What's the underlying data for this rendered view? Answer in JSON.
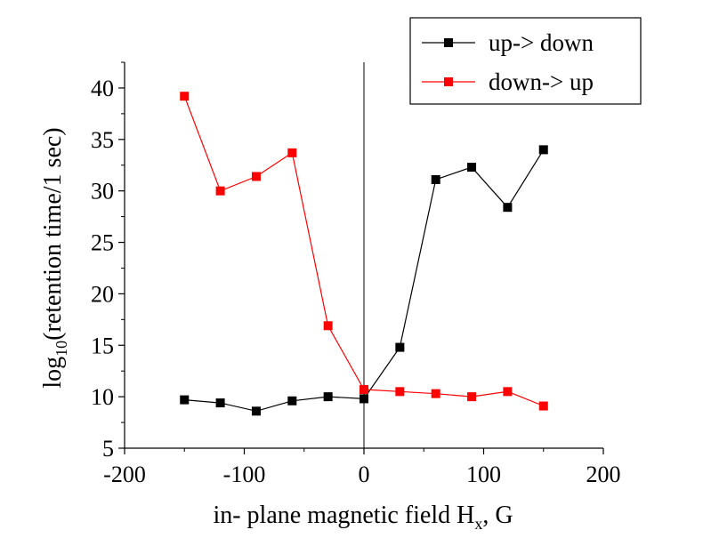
{
  "chart_data": {
    "type": "line",
    "xlabel": {
      "main": "in- plane magnetic field H",
      "sub": "x",
      "suffix": ", G"
    },
    "ylabel": {
      "prefix": "log",
      "sub": "10",
      "suffix": "(retention time/1 sec)"
    },
    "xlim": [
      -200,
      200
    ],
    "ylim": [
      5,
      42.5
    ],
    "xticks": [
      -200,
      -100,
      0,
      100,
      200
    ],
    "xtick_labels": [
      "-200",
      "-100",
      "0",
      "100",
      "200"
    ],
    "yticks": [
      5,
      10,
      15,
      20,
      25,
      30,
      35,
      40
    ],
    "ytick_labels": [
      "5",
      "10",
      "15",
      "20",
      "25",
      "30",
      "35",
      "40"
    ],
    "vertical_line_at_x": 0,
    "grid": false,
    "legend": "top-right",
    "series": [
      {
        "name": "up-> down",
        "color": "#000000",
        "marker": "square",
        "x": [
          -150,
          -120,
          -90,
          -60,
          -30,
          0,
          30,
          60,
          90,
          120,
          150
        ],
        "y": [
          9.7,
          9.4,
          8.6,
          9.6,
          10.0,
          9.8,
          14.8,
          31.1,
          32.3,
          28.4,
          34.0
        ]
      },
      {
        "name": "down-> up",
        "color": "#ff0000",
        "marker": "square",
        "x": [
          -150,
          -120,
          -90,
          -60,
          -30,
          0,
          30,
          60,
          90,
          120,
          150
        ],
        "y": [
          39.2,
          30.0,
          31.4,
          33.7,
          16.9,
          10.7,
          10.5,
          10.3,
          10.0,
          10.5,
          9.1
        ]
      }
    ]
  }
}
